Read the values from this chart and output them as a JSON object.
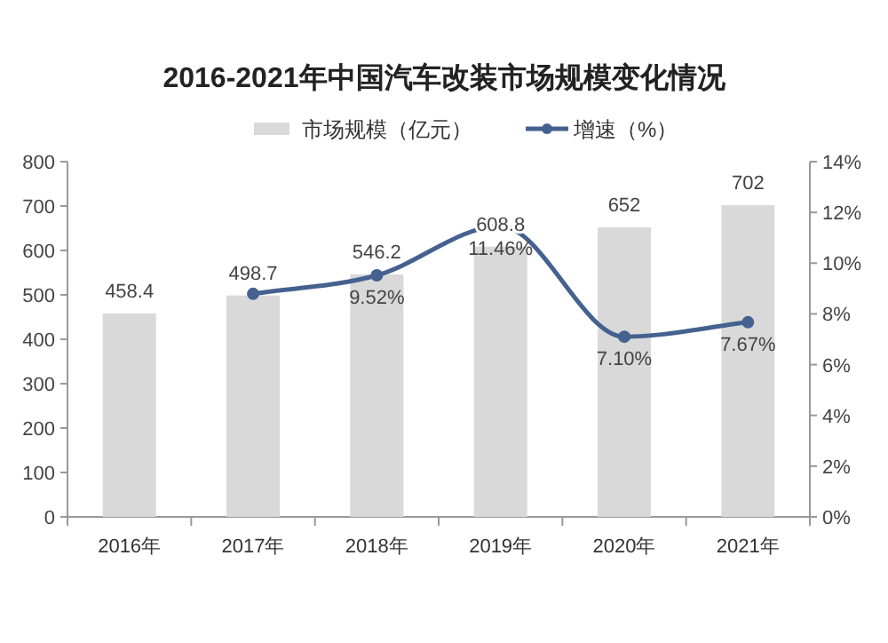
{
  "chart_data": {
    "type": "bar",
    "title": "2016-2021年中国汽车改装市场规模变化情况",
    "categories": [
      "2016年",
      "2017年",
      "2018年",
      "2019年",
      "2020年",
      "2021年"
    ],
    "series": [
      {
        "name": "市场规模（亿元）",
        "color": "#d9d9d9",
        "values": [
          458.4,
          498.7,
          546.2,
          608.8,
          652,
          702
        ]
      },
      {
        "type": "line",
        "name": "增速（%）",
        "color": "#44618f",
        "axis": "y2",
        "marker": "circle",
        "values": [
          null,
          8.79,
          9.52,
          11.46,
          7.1,
          7.67
        ],
        "value_labels": [
          null,
          null,
          "9.52%",
          "11.46%",
          "7.10%",
          "7.67%"
        ]
      }
    ],
    "data_labels": true,
    "ylim": [
      0,
      800
    ],
    "yticks": [
      0,
      100,
      200,
      300,
      400,
      500,
      600,
      700,
      800
    ],
    "y2lim": [
      0,
      14
    ],
    "y2ticks": [
      {
        "value": 0,
        "label": "0%"
      },
      {
        "value": 2,
        "label": "2%"
      },
      {
        "value": 4,
        "label": "4%"
      },
      {
        "value": 6,
        "label": "6%"
      },
      {
        "value": 8,
        "label": "8%"
      },
      {
        "value": 10,
        "label": "10%"
      },
      {
        "value": 12,
        "label": "12%"
      },
      {
        "value": 14,
        "label": "14%"
      }
    ],
    "legend": "top",
    "grid": false
  }
}
